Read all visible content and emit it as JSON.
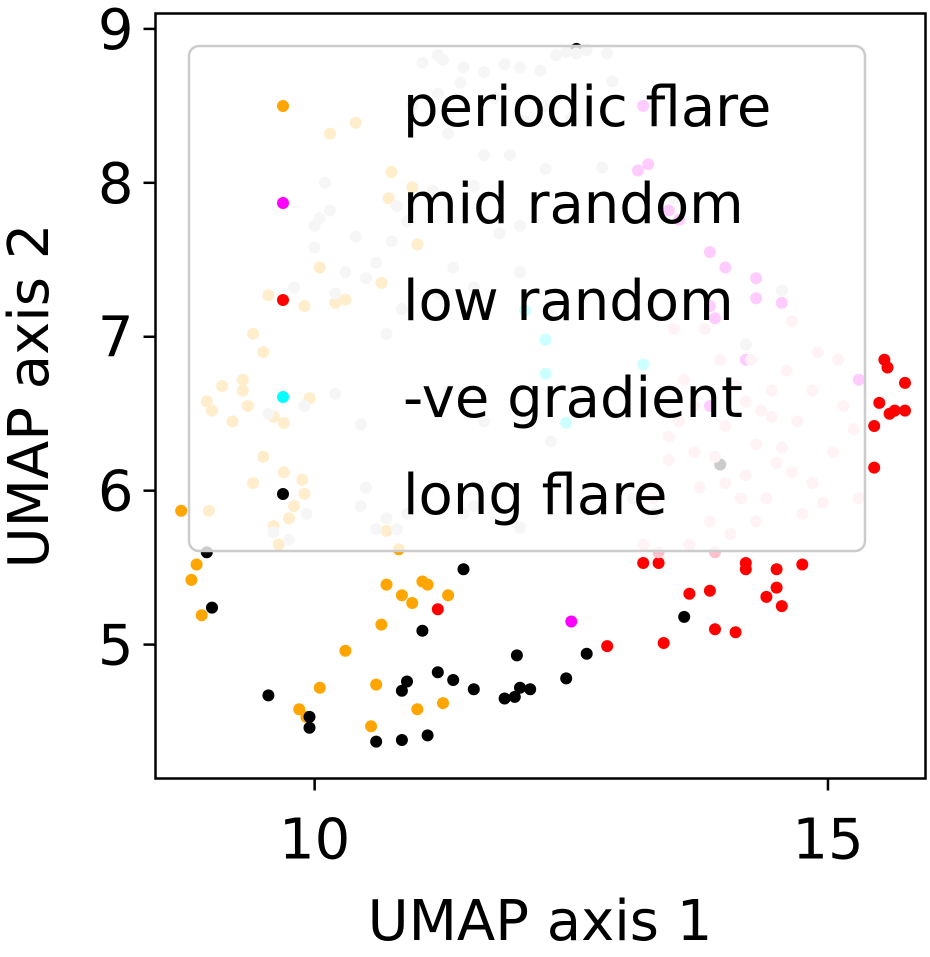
{
  "chart_data": {
    "type": "scatter",
    "xlabel": "UMAP axis 1",
    "ylabel": "UMAP axis 2",
    "xlim": [
      8.45,
      15.95
    ],
    "ylim": [
      4.13,
      9.1
    ],
    "xticks": [
      10,
      15
    ],
    "yticks": [
      5,
      6,
      7,
      8,
      9
    ],
    "grid": false,
    "legend": {
      "position": "upper-right",
      "entries": [
        {
          "name": "periodic flare",
          "color": "#ffa500"
        },
        {
          "name": "mid random",
          "color": "#ff00ff"
        },
        {
          "name": "low random",
          "color": "#ff0000"
        },
        {
          "name": "-ve gradient",
          "color": "#00ffff"
        },
        {
          "name": "long flare",
          "color": "#000000"
        }
      ]
    },
    "series": [
      {
        "color": "#ffa500",
        "points": [
          [
            8.7,
            5.87
          ],
          [
            8.85,
            5.52
          ],
          [
            8.8,
            5.42
          ],
          [
            8.9,
            5.19
          ],
          [
            10.05,
            4.72
          ],
          [
            10.3,
            4.96
          ],
          [
            9.85,
            4.58
          ],
          [
            9.92,
            4.53
          ],
          [
            10.55,
            4.47
          ],
          [
            10.6,
            4.74
          ],
          [
            10.65,
            5.13
          ],
          [
            10.7,
            5.39
          ],
          [
            10.85,
            5.32
          ],
          [
            10.95,
            5.27
          ],
          [
            11.05,
            5.41
          ],
          [
            11.1,
            5.39
          ],
          [
            11.3,
            5.32
          ],
          [
            11.25,
            4.62
          ],
          [
            11.0,
            4.58
          ],
          [
            10.82,
            5.62
          ],
          [
            10.7,
            5.74
          ],
          [
            9.9,
            5.98
          ],
          [
            9.8,
            5.9
          ],
          [
            9.6,
            5.77
          ],
          [
            9.65,
            5.65
          ],
          [
            9.75,
            5.82
          ],
          [
            9.4,
            6.05
          ],
          [
            9.5,
            6.22
          ],
          [
            9.7,
            6.12
          ],
          [
            9.88,
            6.07
          ],
          [
            8.97,
            5.87
          ],
          [
            9.0,
            6.52
          ],
          [
            9.1,
            6.68
          ],
          [
            9.3,
            6.72
          ],
          [
            9.3,
            6.65
          ],
          [
            9.2,
            6.45
          ],
          [
            9.35,
            6.55
          ],
          [
            9.6,
            6.48
          ],
          [
            9.7,
            6.44
          ],
          [
            9.5,
            6.9
          ],
          [
            9.4,
            7.02
          ],
          [
            9.55,
            7.27
          ],
          [
            9.9,
            7.2
          ],
          [
            10.05,
            7.45
          ],
          [
            10.2,
            7.22
          ],
          [
            10.3,
            7.24
          ],
          [
            10.65,
            7.35
          ],
          [
            10.72,
            7.9
          ],
          [
            10.95,
            7.97
          ],
          [
            11.0,
            7.6
          ],
          [
            10.4,
            8.39
          ],
          [
            10.15,
            8.32
          ],
          [
            10.75,
            8.07
          ],
          [
            8.95,
            6.58
          ],
          [
            9.95,
            6.6
          ]
        ]
      },
      {
        "color": "#ff00ff",
        "points": [
          [
            12.5,
            5.15
          ],
          [
            13.15,
            8.08
          ],
          [
            13.25,
            8.12
          ],
          [
            13.45,
            7.82
          ],
          [
            13.55,
            7.76
          ],
          [
            13.85,
            7.55
          ],
          [
            14.0,
            7.45
          ],
          [
            14.3,
            7.38
          ],
          [
            13.85,
            7.2
          ],
          [
            13.9,
            7.12
          ],
          [
            14.3,
            7.25
          ],
          [
            14.55,
            7.22
          ],
          [
            15.3,
            6.72
          ],
          [
            14.2,
            6.85
          ],
          [
            13.85,
            6.55
          ],
          [
            13.2,
            8.5
          ]
        ]
      },
      {
        "color": "#ff0000",
        "points": [
          [
            12.85,
            4.99
          ],
          [
            13.2,
            5.53
          ],
          [
            13.35,
            5.53
          ],
          [
            13.4,
            5.01
          ],
          [
            13.65,
            5.33
          ],
          [
            13.85,
            5.35
          ],
          [
            13.9,
            5.1
          ],
          [
            14.1,
            5.08
          ],
          [
            14.2,
            5.53
          ],
          [
            14.2,
            5.49
          ],
          [
            14.4,
            5.31
          ],
          [
            14.5,
            5.37
          ],
          [
            14.5,
            5.49
          ],
          [
            14.55,
            5.25
          ],
          [
            14.75,
            5.52
          ],
          [
            15.45,
            6.15
          ],
          [
            15.45,
            6.42
          ],
          [
            15.5,
            6.57
          ],
          [
            15.65,
            6.52
          ],
          [
            15.6,
            6.5
          ],
          [
            15.75,
            6.52
          ],
          [
            15.75,
            6.7
          ],
          [
            15.55,
            6.85
          ],
          [
            15.58,
            6.8
          ],
          [
            11.2,
            5.23
          ]
        ]
      },
      {
        "color": "#00ffff",
        "points": [
          [
            12.05,
            7.17
          ],
          [
            12.25,
            6.98
          ],
          [
            12.25,
            6.76
          ],
          [
            12.45,
            6.44
          ],
          [
            13.2,
            6.82
          ]
        ]
      },
      {
        "color": "#000000",
        "points": [
          [
            8.95,
            5.6
          ],
          [
            9.0,
            5.24
          ],
          [
            9.55,
            4.67
          ],
          [
            9.95,
            4.46
          ],
          [
            9.95,
            4.53
          ],
          [
            10.6,
            4.37
          ],
          [
            10.85,
            4.38
          ],
          [
            10.85,
            4.7
          ],
          [
            10.9,
            4.76
          ],
          [
            11.05,
            5.09
          ],
          [
            11.1,
            4.41
          ],
          [
            11.2,
            4.82
          ],
          [
            11.35,
            4.77
          ],
          [
            11.45,
            5.49
          ],
          [
            11.55,
            4.71
          ],
          [
            11.85,
            4.65
          ],
          [
            11.95,
            4.66
          ],
          [
            11.97,
            4.93
          ],
          [
            12.0,
            4.72
          ],
          [
            12.1,
            4.71
          ],
          [
            12.45,
            4.78
          ],
          [
            12.65,
            4.94
          ],
          [
            13.6,
            5.18
          ],
          [
            13.95,
            6.17
          ],
          [
            12.55,
            8.87
          ]
        ]
      },
      {
        "color": "#d3d3d3",
        "points": [
          [
            11.05,
            8.78
          ],
          [
            11.2,
            8.83
          ],
          [
            11.25,
            8.8
          ],
          [
            11.45,
            8.75
          ],
          [
            11.65,
            8.72
          ],
          [
            11.85,
            8.77
          ],
          [
            12.0,
            8.75
          ],
          [
            12.2,
            8.73
          ],
          [
            12.35,
            8.83
          ],
          [
            12.45,
            8.85
          ],
          [
            12.55,
            8.84
          ],
          [
            12.65,
            8.86
          ],
          [
            12.85,
            8.84
          ],
          [
            11.2,
            8.58
          ],
          [
            11.42,
            8.65
          ],
          [
            11.75,
            8.55
          ],
          [
            10.95,
            8.5
          ],
          [
            11.3,
            8.32
          ],
          [
            11.65,
            8.18
          ],
          [
            12.05,
            8.4
          ],
          [
            12.25,
            8.5
          ],
          [
            12.5,
            8.42
          ],
          [
            12.9,
            8.66
          ],
          [
            12.8,
            8.1
          ],
          [
            12.25,
            8.09
          ],
          [
            11.9,
            8.18
          ],
          [
            11.55,
            7.98
          ],
          [
            11.15,
            7.95
          ],
          [
            10.9,
            7.75
          ],
          [
            10.8,
            7.85
          ],
          [
            10.75,
            7.62
          ],
          [
            10.6,
            7.48
          ],
          [
            10.5,
            7.38
          ],
          [
            10.3,
            7.42
          ],
          [
            10.0,
            7.58
          ],
          [
            10.05,
            7.77
          ],
          [
            10.15,
            7.82
          ],
          [
            10.1,
            8.0
          ],
          [
            10.0,
            7.72
          ],
          [
            9.8,
            7.32
          ],
          [
            10.4,
            7.65
          ],
          [
            10.2,
            7.28
          ],
          [
            10.85,
            7.18
          ],
          [
            10.7,
            7.02
          ],
          [
            11.2,
            7.28
          ],
          [
            11.35,
            7.45
          ],
          [
            11.55,
            7.32
          ],
          [
            11.8,
            7.67
          ],
          [
            12.3,
            6.32
          ],
          [
            11.45,
            5.85
          ],
          [
            12.0,
            5.76
          ],
          [
            10.5,
            6.02
          ],
          [
            10.45,
            5.9
          ],
          [
            10.6,
            5.75
          ],
          [
            10.8,
            5.75
          ],
          [
            10.7,
            5.82
          ],
          [
            10.9,
            5.85
          ],
          [
            11.3,
            6.65
          ],
          [
            10.45,
            6.43
          ],
          [
            11.55,
            5.9
          ],
          [
            13.1,
            5.95
          ],
          [
            13.3,
            5.85
          ],
          [
            9.92,
            5.85
          ],
          [
            9.6,
            5.73
          ],
          [
            9.75,
            5.68
          ],
          [
            9.55,
            6.5
          ],
          [
            9.9,
            6.55
          ],
          [
            10.2,
            6.63
          ],
          [
            11.65,
            6.45
          ],
          [
            12.0,
            7.72
          ],
          [
            12.3,
            7.15
          ],
          [
            12.0,
            7.42
          ],
          [
            14.55,
            7.3
          ],
          [
            14.2,
            6.95
          ],
          [
            13.5,
            7.9
          ]
        ]
      },
      {
        "color": "#ffc0cb",
        "points": [
          [
            13.2,
            5.65
          ],
          [
            13.3,
            5.95
          ],
          [
            13.45,
            6.2
          ],
          [
            13.55,
            6.45
          ],
          [
            13.6,
            6.72
          ],
          [
            13.7,
            6.25
          ],
          [
            13.75,
            6.02
          ],
          [
            13.85,
            5.8
          ],
          [
            13.9,
            5.6
          ],
          [
            14.05,
            5.72
          ],
          [
            14.15,
            5.95
          ],
          [
            14.2,
            6.1
          ],
          [
            14.3,
            6.3
          ],
          [
            14.35,
            6.52
          ],
          [
            14.45,
            6.48
          ],
          [
            14.55,
            6.28
          ],
          [
            14.65,
            6.12
          ],
          [
            14.75,
            5.85
          ],
          [
            14.85,
            6.05
          ],
          [
            14.95,
            5.92
          ],
          [
            15.05,
            6.25
          ],
          [
            15.15,
            6.55
          ],
          [
            15.25,
            6.4
          ],
          [
            14.45,
            6.65
          ],
          [
            14.25,
            6.85
          ],
          [
            14.1,
            6.68
          ],
          [
            13.95,
            6.85
          ],
          [
            13.8,
            7.05
          ],
          [
            14.6,
            6.78
          ],
          [
            14.85,
            6.65
          ],
          [
            15.1,
            6.85
          ],
          [
            14.4,
            5.95
          ],
          [
            14.0,
            6.42
          ],
          [
            13.7,
            6.55
          ],
          [
            13.45,
            6.35
          ],
          [
            14.5,
            6.18
          ],
          [
            14.7,
            6.45
          ],
          [
            14.2,
            6.58
          ],
          [
            13.9,
            6.22
          ],
          [
            13.65,
            5.65
          ],
          [
            14.3,
            5.8
          ],
          [
            13.35,
            5.6
          ],
          [
            15.3,
            5.95
          ],
          [
            14.9,
            6.9
          ],
          [
            14.65,
            7.1
          ],
          [
            13.5,
            7.05
          ],
          [
            14.0,
            6.05
          ]
        ]
      }
    ]
  }
}
